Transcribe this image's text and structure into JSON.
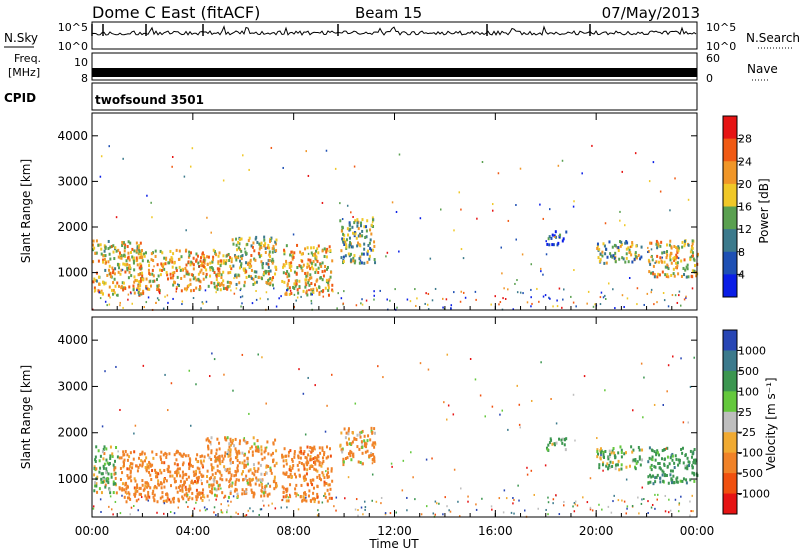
{
  "header": {
    "title": "Dome C East (fitACF)",
    "beam": "Beam 15",
    "date": "07/May/2013"
  },
  "meta_panels": {
    "nsky": {
      "label": "N.Sky",
      "ticks_left": [
        "10^5",
        "10^0"
      ],
      "ticks_right": [
        "10^5",
        "10^0"
      ],
      "right_label": "N.Search"
    },
    "freq": {
      "label_line1": "Freq.",
      "label_line2": "[MHz]",
      "ticks_left": [
        "10",
        "8"
      ],
      "ticks_right": [
        "60",
        "0"
      ],
      "right_label": "Nave"
    },
    "cpid": {
      "label": "CPID",
      "value": "twofsound 3501"
    }
  },
  "colors": {
    "power_scale": [
      "#0a1ee6",
      "#1e50b4",
      "#3c7a8c",
      "#5aa050",
      "#f0c828",
      "#f09628",
      "#f05a14",
      "#e61414"
    ],
    "velocity_scale": [
      "#e61414",
      "#f0500f",
      "#f08228",
      "#f0aa32",
      "#bebebe",
      "#64c83c",
      "#3c9650",
      "#3c7a8c",
      "#2846b4"
    ]
  },
  "chart_data": [
    {
      "type": "heatmap",
      "name": "power-panel",
      "xlabel": "",
      "ylabel": "Slant Range [km]",
      "x_ticks": [
        "00:00",
        "04:00",
        "08:00",
        "12:00",
        "16:00",
        "20:00",
        "00:00"
      ],
      "x_range_hours": [
        0,
        24
      ],
      "y_ticks": [
        1000,
        2000,
        3000,
        4000
      ],
      "ylim": [
        180,
        4500
      ],
      "colorbar": {
        "label": "Power [dB]",
        "ticks": [
          "4",
          "8",
          "12",
          "16",
          "20",
          "24",
          "28"
        ],
        "range": [
          0,
          32
        ]
      },
      "echo_regions": [
        {
          "t_start": 0.0,
          "t_end": 2.0,
          "range_low": 500,
          "range_high": 1700,
          "level": 27
        },
        {
          "t_start": 1.8,
          "t_end": 5.5,
          "range_low": 600,
          "range_high": 1500,
          "level": 28
        },
        {
          "t_start": 5.5,
          "t_end": 7.3,
          "range_low": 700,
          "range_high": 1800,
          "level": 25
        },
        {
          "t_start": 7.5,
          "t_end": 9.5,
          "range_low": 500,
          "range_high": 1600,
          "level": 28
        },
        {
          "t_start": 9.8,
          "t_end": 11.2,
          "range_low": 1200,
          "range_high": 2200,
          "level": 22
        },
        {
          "t_start": 18.0,
          "t_end": 18.8,
          "range_low": 1600,
          "range_high": 1900,
          "level": 14
        },
        {
          "t_start": 20.0,
          "t_end": 21.8,
          "range_low": 1200,
          "range_high": 1700,
          "level": 22
        },
        {
          "t_start": 22.0,
          "t_end": 24.0,
          "range_low": 900,
          "range_high": 1700,
          "level": 27
        }
      ]
    },
    {
      "type": "heatmap",
      "name": "velocity-panel",
      "xlabel": "Time UT",
      "ylabel": "Slant Range [km]",
      "x_ticks": [
        "00:00",
        "04:00",
        "08:00",
        "12:00",
        "16:00",
        "20:00",
        "00:00"
      ],
      "x_range_hours": [
        0,
        24
      ],
      "y_ticks": [
        1000,
        2000,
        3000,
        4000
      ],
      "ylim": [
        180,
        4500
      ],
      "colorbar": {
        "label": "Velocity [m s⁻¹]",
        "ticks": [
          "1000",
          "500",
          "100",
          "25",
          "-25",
          "-100",
          "-500",
          "-1000"
        ]
      },
      "echo_regions": [
        {
          "t_start": 0.0,
          "t_end": 1.0,
          "range_low": 700,
          "range_high": 1700,
          "level": 100
        },
        {
          "t_start": 1.0,
          "t_end": 4.5,
          "range_low": 500,
          "range_high": 1600,
          "level": -300
        },
        {
          "t_start": 4.5,
          "t_end": 7.3,
          "range_low": 600,
          "range_high": 1900,
          "level": -200
        },
        {
          "t_start": 7.5,
          "t_end": 9.5,
          "range_low": 500,
          "range_high": 1700,
          "level": -300
        },
        {
          "t_start": 9.8,
          "t_end": 11.2,
          "range_low": 1300,
          "range_high": 2100,
          "level": -150
        },
        {
          "t_start": 18.0,
          "t_end": 18.8,
          "range_low": 1600,
          "range_high": 1900,
          "level": 200
        },
        {
          "t_start": 20.0,
          "t_end": 21.8,
          "range_low": 1200,
          "range_high": 1700,
          "level": 150
        },
        {
          "t_start": 22.0,
          "t_end": 24.0,
          "range_low": 900,
          "range_high": 1700,
          "level": 300
        }
      ]
    }
  ]
}
